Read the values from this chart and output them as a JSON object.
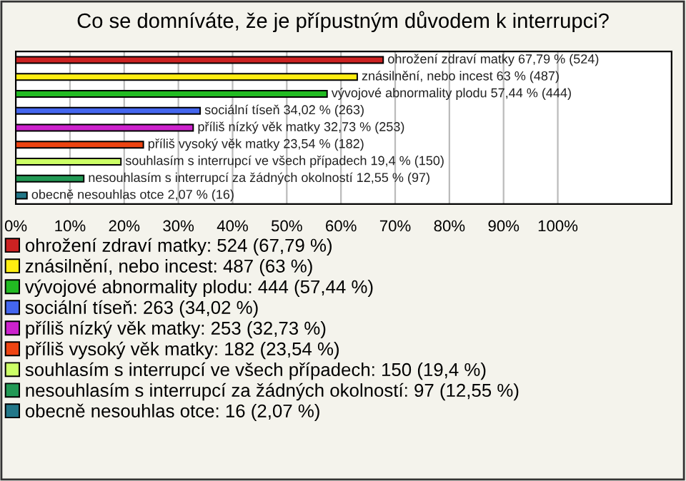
{
  "chart_data": {
    "type": "bar",
    "orientation": "horizontal",
    "title": "Co se domníváte, že je přípustným důvodem k interrupci?",
    "categories": [
      null,
      null,
      null,
      null,
      null,
      null,
      null,
      null,
      null
    ],
    "series": [
      {
        "name": "ohrožení zdraví matky: 524 (67,79 %)",
        "color": "#cc2222",
        "values": [
          67.79,
          null,
          null,
          null,
          null,
          null,
          null,
          null,
          null
        ],
        "value_labels": [
          "ohrožení zdraví matky 67,79 % (524)",
          null,
          null,
          null,
          null,
          null,
          null,
          null,
          null
        ]
      },
      {
        "name": "znásilnění, nebo incest: 487 (63 %)",
        "color": "#ffee11",
        "values": [
          null,
          63,
          null,
          null,
          null,
          null,
          null,
          null,
          null
        ],
        "value_labels": [
          null,
          "znásilnění, nebo incest 63 % (487)",
          null,
          null,
          null,
          null,
          null,
          null,
          null
        ]
      },
      {
        "name": "vývojové abnormality plodu: 444 (57,44 %)",
        "color": "#22bb22",
        "values": [
          null,
          null,
          57.44,
          null,
          null,
          null,
          null,
          null,
          null
        ],
        "value_labels": [
          null,
          null,
          "vývojové abnormality plodu 57,44 % (444)",
          null,
          null,
          null,
          null,
          null,
          null
        ]
      },
      {
        "name": "sociální tíseň: 263 (34,02 %)",
        "color": "#4466ee",
        "values": [
          null,
          null,
          null,
          34.02,
          null,
          null,
          null,
          null,
          null
        ],
        "value_labels": [
          null,
          null,
          null,
          "sociální tíseň 34,02 % (263)",
          null,
          null,
          null,
          null,
          null
        ]
      },
      {
        "name": "příliš nízký věk matky: 253 (32,73 %)",
        "color": "#cc22cc",
        "values": [
          null,
          null,
          null,
          null,
          32.73,
          null,
          null,
          null,
          null
        ],
        "value_labels": [
          null,
          null,
          null,
          null,
          "příliš nízký věk matky 32,73 % (253)",
          null,
          null,
          null,
          null
        ]
      },
      {
        "name": "příliš vysoký věk matky: 182 (23,54 %)",
        "color": "#ee4411",
        "values": [
          null,
          null,
          null,
          null,
          null,
          23.54,
          null,
          null,
          null
        ],
        "value_labels": [
          null,
          null,
          null,
          null,
          null,
          "příliš vysoký věk matky 23,54 % (182)",
          null,
          null,
          null
        ]
      },
      {
        "name": "souhlasím s interrupcí ve všech případech: 150 (19,4 %)",
        "color": "#ccff66",
        "values": [
          null,
          null,
          null,
          null,
          null,
          null,
          19.4,
          null,
          null
        ],
        "value_labels": [
          null,
          null,
          null,
          null,
          null,
          null,
          "souhlasím s interrupcí ve všech případech 19,4 % (150)",
          null,
          null
        ]
      },
      {
        "name": "nesouhlasím s interrupcí za žádných okolností: 97 (12,55 %)",
        "color": "#229955",
        "values": [
          null,
          null,
          null,
          null,
          null,
          null,
          null,
          12.55,
          null
        ],
        "value_labels": [
          null,
          null,
          null,
          null,
          null,
          null,
          null,
          "nesouhlasím s interrupcí za žádných okolností 12,55 % (97)",
          null
        ]
      },
      {
        "name": "obecně nesouhlas otce: 16 (2,07 %)",
        "color": "#227788",
        "values": [
          null,
          null,
          null,
          null,
          null,
          null,
          null,
          null,
          2.07
        ],
        "value_labels": [
          null,
          null,
          null,
          null,
          null,
          null,
          null,
          null,
          "obecně nesouhlas otce 2,07 % (16)"
        ]
      }
    ],
    "xlim": [
      0,
      121
    ],
    "xticks": [
      {
        "value": 0,
        "label": "0%"
      },
      {
        "value": 10,
        "label": "10%"
      },
      {
        "value": 20,
        "label": "20%"
      },
      {
        "value": 30,
        "label": "30%"
      },
      {
        "value": 40,
        "label": "40%"
      },
      {
        "value": 50,
        "label": "50%"
      },
      {
        "value": 60,
        "label": "60%"
      },
      {
        "value": 70,
        "label": "70%"
      },
      {
        "value": 80,
        "label": "80%"
      },
      {
        "value": 90,
        "label": "90%"
      },
      {
        "value": 100,
        "label": "100%"
      }
    ],
    "grid": "x",
    "legend": "bottom"
  }
}
